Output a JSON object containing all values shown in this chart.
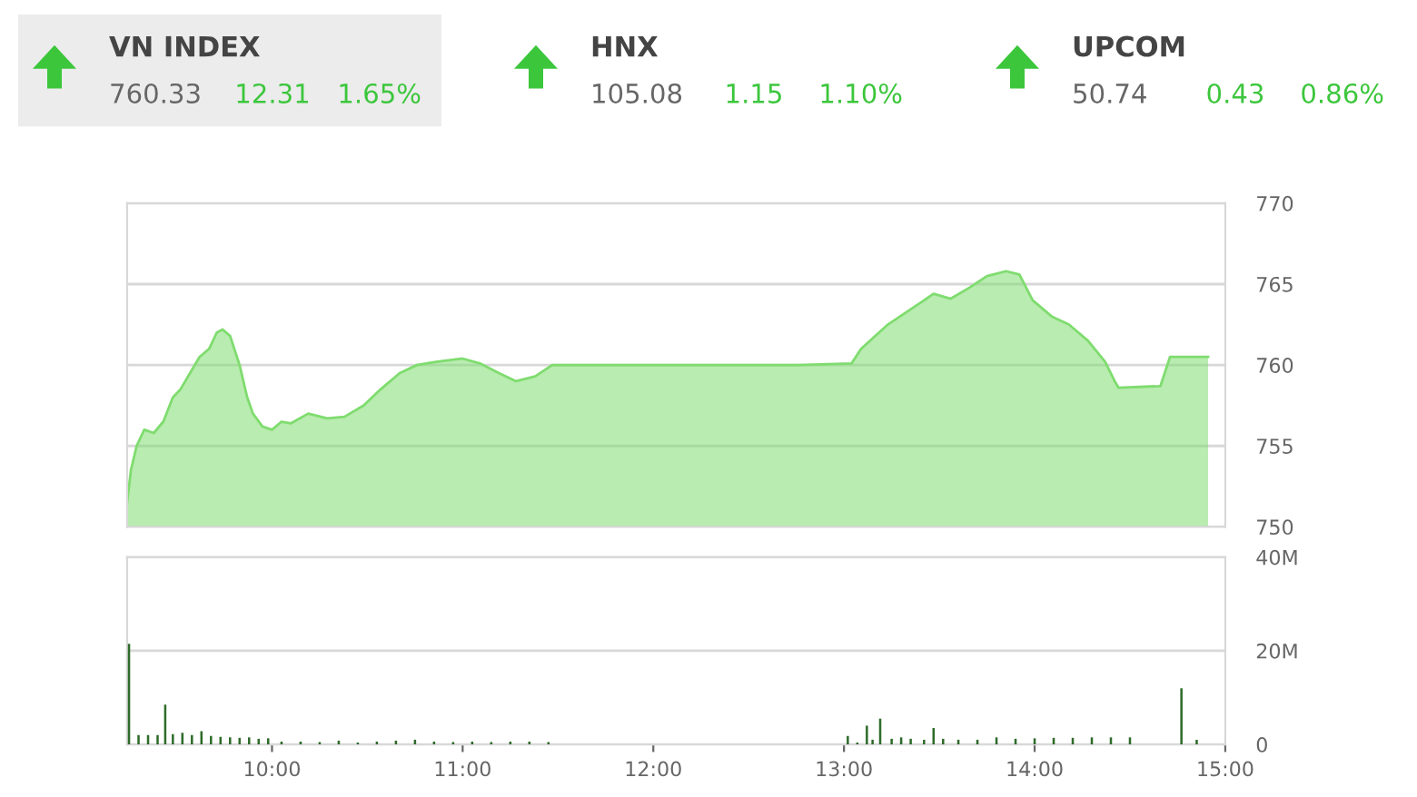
{
  "chart_data": [
    {
      "type": "other",
      "annotations": [
        "VN INDEX",
        "760.33",
        "12.31",
        "1.65%",
        "HNX",
        "105.08",
        "1.15",
        "1.10%",
        "UPCOM",
        "50.74",
        "0.43",
        "0.86%"
      ]
    },
    {
      "type": "area",
      "x": [
        9.24,
        9.26,
        9.29,
        9.33,
        9.38,
        9.43,
        9.48,
        9.52,
        9.57,
        9.62,
        9.67,
        9.71,
        9.74,
        9.78,
        9.83,
        9.87,
        9.9,
        9.95,
        10.0,
        10.05,
        10.1,
        10.19,
        10.29,
        10.38,
        10.48,
        10.57,
        10.67,
        10.76,
        10.86,
        11.0,
        11.09,
        11.19,
        11.28,
        11.38,
        11.47,
        11.71,
        12.19,
        12.76,
        13.04,
        13.09,
        13.23,
        13.37,
        13.47,
        13.56,
        13.66,
        13.75,
        13.85,
        13.92,
        13.99,
        14.09,
        14.18,
        14.28,
        14.37,
        14.42,
        14.44,
        14.66,
        14.71,
        14.91
      ],
      "series": [
        {
          "color": "#7fdc6f",
          "values": [
            751.5,
            753.5,
            755,
            756,
            755.8,
            756.5,
            758,
            758.5,
            759.5,
            760.5,
            761,
            762,
            762.2,
            761.8,
            760,
            758,
            757,
            756.2,
            756,
            756.5,
            756.4,
            757,
            756.7,
            756.8,
            757.5,
            758.5,
            759.5,
            760,
            760.2,
            760.4,
            760.1,
            759.5,
            759,
            759.3,
            760,
            760,
            760,
            760,
            760.1,
            761,
            762.5,
            763.6,
            764.4,
            764.1,
            764.8,
            765.5,
            765.8,
            765.6,
            764,
            763,
            762.5,
            761.5,
            760.2,
            759,
            758.6,
            758.7,
            760.5,
            760.5
          ]
        }
      ],
      "xlim": [
        9.24,
        15.0
      ],
      "ylim": [
        750,
        770
      ],
      "yticks": [
        750,
        755,
        760,
        765,
        770
      ],
      "grid": "y",
      "tick_labels": "y"
    },
    {
      "type": "bar",
      "x": [
        9.25,
        9.3,
        9.35,
        9.4,
        9.44,
        9.48,
        9.53,
        9.58,
        9.63,
        9.68,
        9.73,
        9.78,
        9.83,
        9.88,
        9.93,
        9.98,
        10.05,
        10.15,
        10.25,
        10.35,
        10.45,
        10.55,
        10.65,
        10.75,
        10.85,
        10.95,
        11.05,
        11.15,
        11.25,
        11.35,
        11.45,
        13.02,
        13.07,
        13.12,
        13.15,
        13.19,
        13.25,
        13.3,
        13.35,
        13.42,
        13.47,
        13.52,
        13.6,
        13.7,
        13.8,
        13.9,
        14.0,
        14.1,
        14.2,
        14.3,
        14.4,
        14.5,
        14.77,
        14.85
      ],
      "series": [
        {
          "color": "#2e6b2a",
          "values": [
            21.5,
            2,
            2,
            2,
            8.5,
            2.2,
            2.5,
            2,
            2.8,
            1.8,
            1.6,
            1.5,
            1.4,
            1.5,
            1.2,
            1.3,
            0.6,
            0.6,
            0.5,
            0.8,
            0.4,
            0.6,
            0.8,
            1.0,
            0.6,
            0.5,
            0.6,
            0.5,
            0.6,
            0.6,
            0.5,
            1.8,
            0.4,
            4,
            1,
            5.5,
            1.2,
            1.5,
            1.2,
            1.0,
            3.5,
            1.2,
            1.0,
            1.0,
            1.5,
            1.2,
            1.3,
            1.4,
            1.4,
            1.5,
            1.5,
            1.5,
            12,
            1
          ]
        }
      ],
      "xlim": [
        9.24,
        15.0
      ],
      "ylim": [
        0,
        40
      ],
      "yticks": [
        0,
        {
          "value": 20,
          "label": "20M"
        },
        {
          "value": 40,
          "label": "40M"
        }
      ],
      "xticks": [
        {
          "value": 10,
          "label": "10:00"
        },
        {
          "value": 11,
          "label": "11:00"
        },
        {
          "value": 12,
          "label": "12:00"
        },
        {
          "value": 13,
          "label": "13:00"
        },
        {
          "value": 14,
          "label": "14:00"
        },
        {
          "value": 15,
          "label": "15:00"
        }
      ],
      "grid": "y"
    }
  ]
}
